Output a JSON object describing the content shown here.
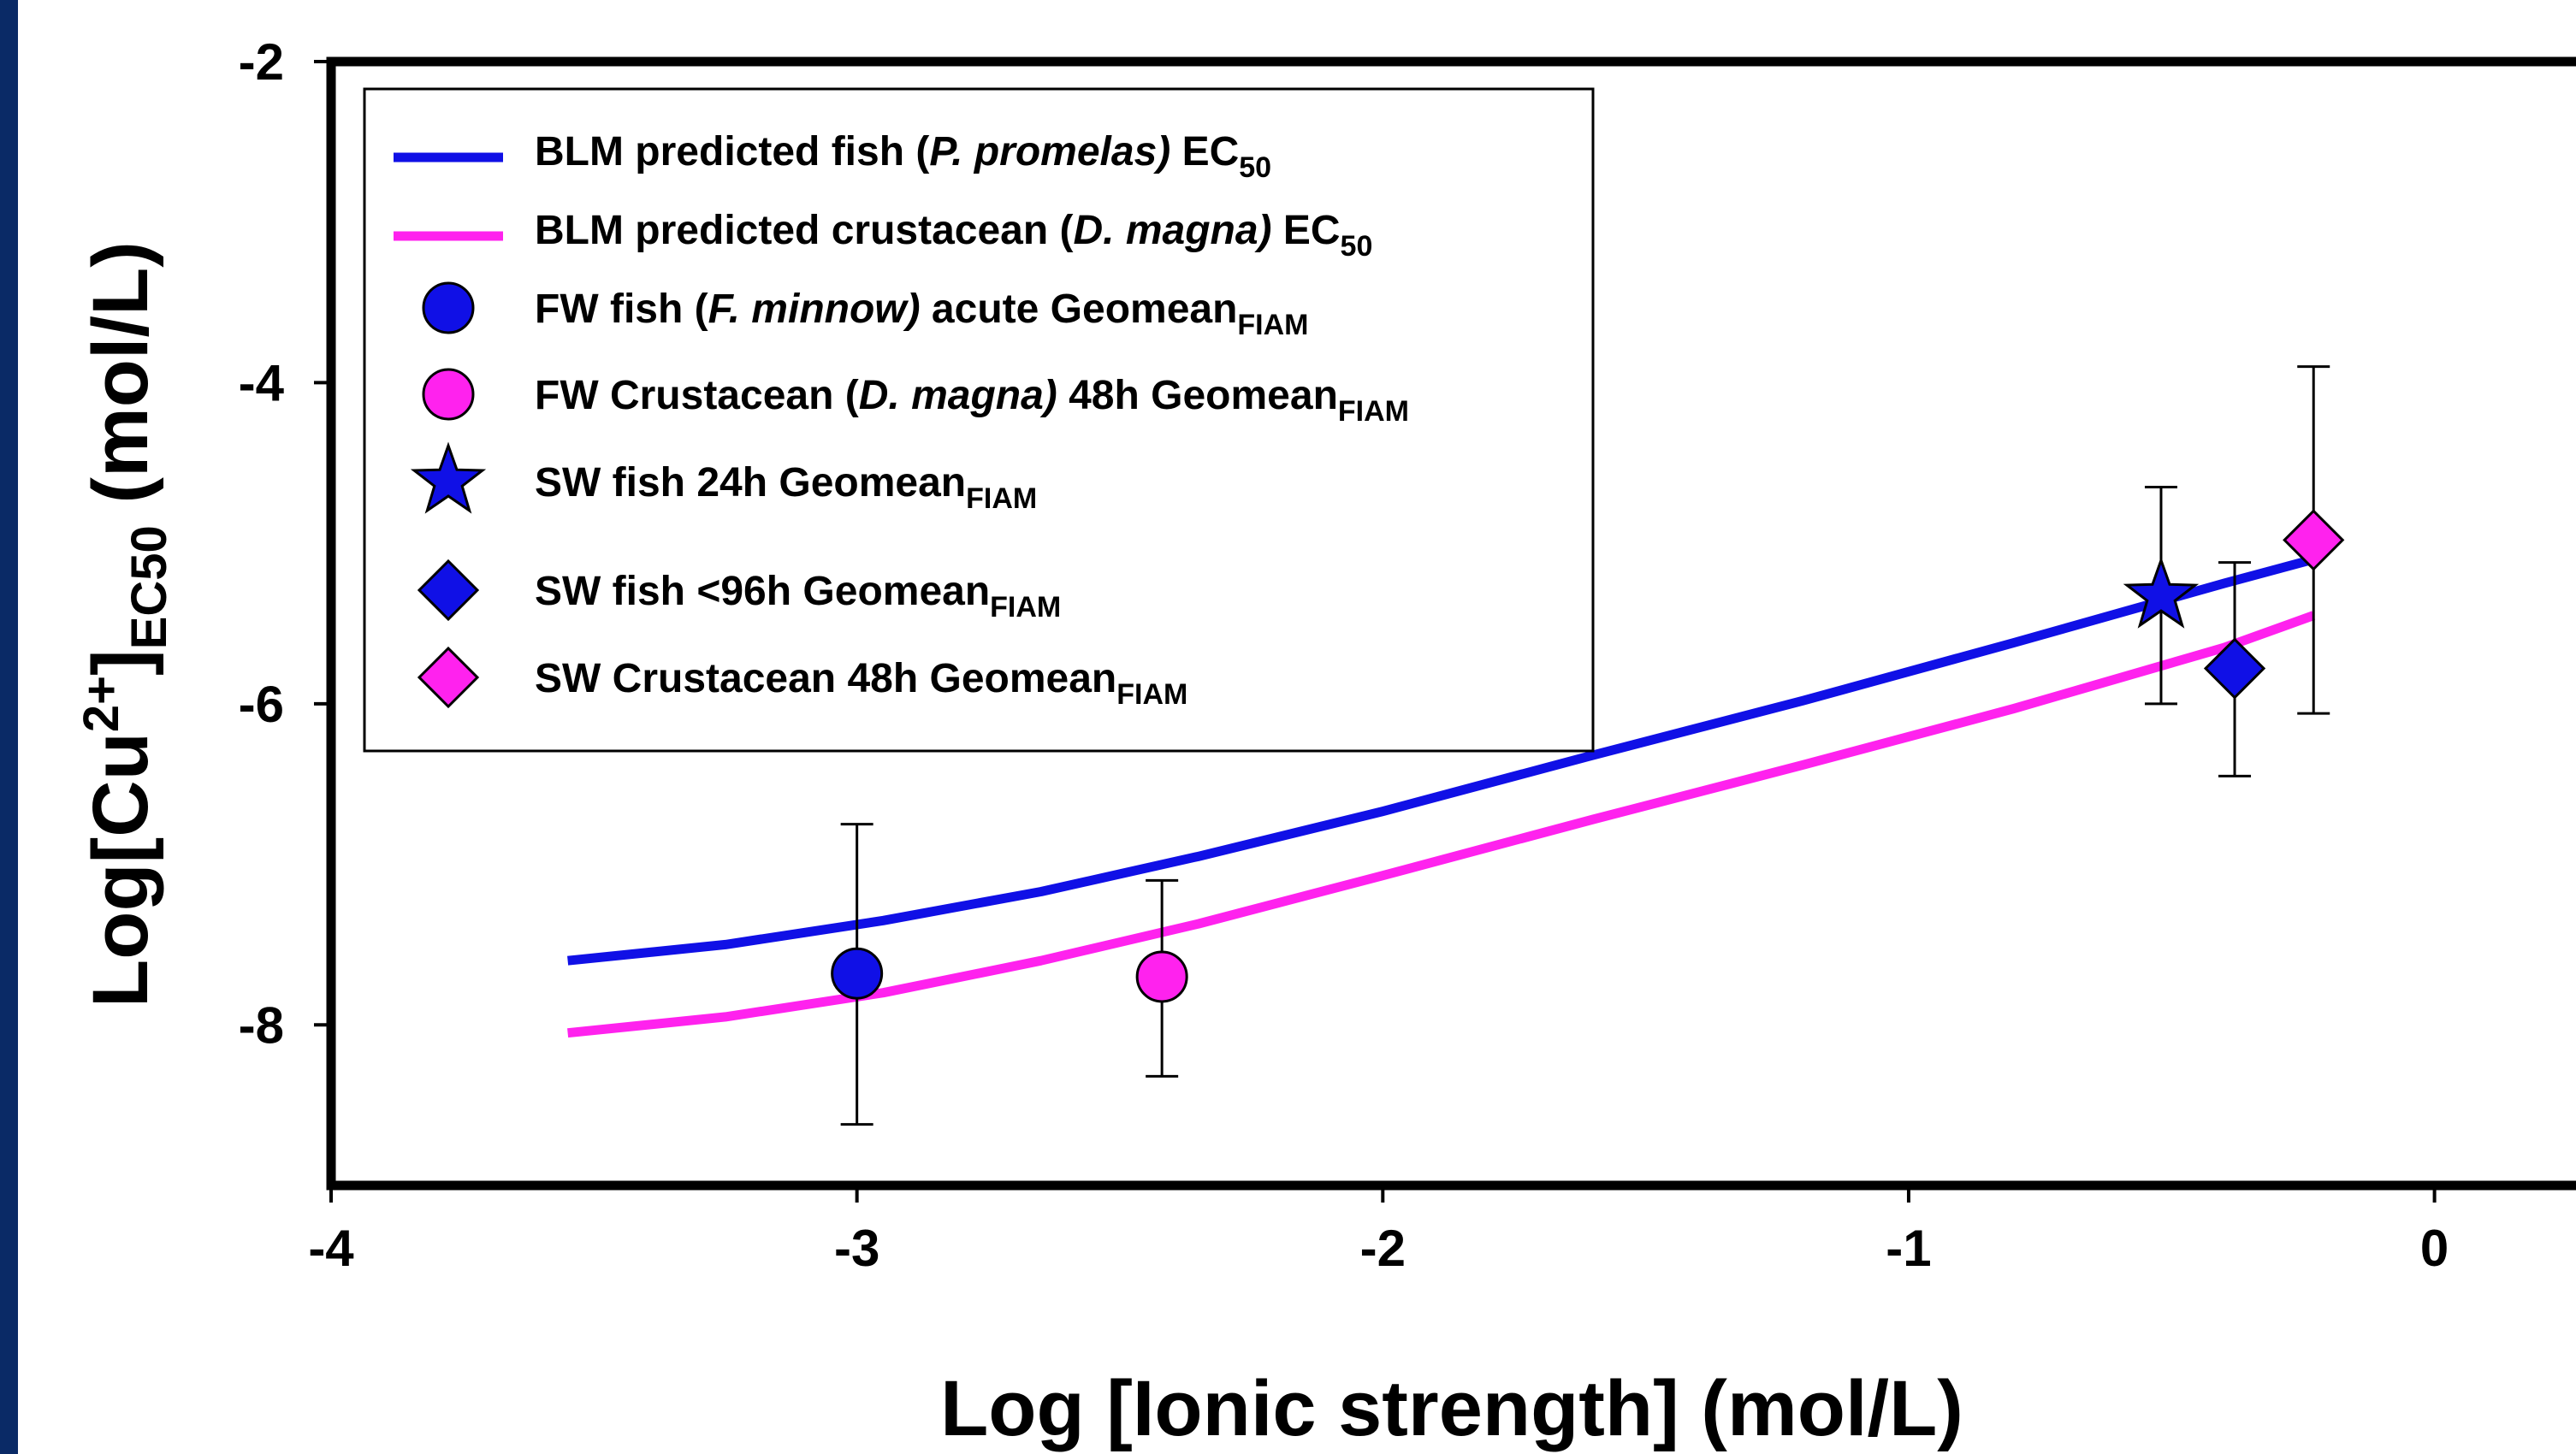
{
  "colors": {
    "fish": "#1010e6",
    "crustacean": "#ff22ee",
    "frame_left": "#0a2a66"
  },
  "chart_data": {
    "type": "scatter",
    "xlabel": "Log [Ionic strength] (mol/L)",
    "ylabel": {
      "pre": "Log[Cu",
      "sup": "2+",
      "mid": "]",
      "sub": "EC50",
      "post": " (mol/L)"
    },
    "xlim": [
      -4,
      0.3
    ],
    "ylim": [
      -9,
      -2
    ],
    "xticks": [
      {
        "value": -4,
        "label": "-4"
      },
      {
        "value": -3,
        "label": "-3"
      },
      {
        "value": -2,
        "label": "-2"
      },
      {
        "value": -1,
        "label": "-1"
      },
      {
        "value": 0,
        "label": "0"
      }
    ],
    "yticks": [
      {
        "value": -2,
        "label": "-2"
      },
      {
        "value": -4,
        "label": "-4"
      },
      {
        "value": -6,
        "label": "-6"
      },
      {
        "value": -8,
        "label": "-8"
      }
    ],
    "lines": [
      {
        "key": "fish-line",
        "color": "#1010e6",
        "x": [
          -3.55,
          -3.25,
          -2.95,
          -2.65,
          -2.35,
          -2.0,
          -1.6,
          -1.2,
          -0.8,
          -0.4,
          -0.23
        ],
        "y": [
          -7.6,
          -7.5,
          -7.35,
          -7.17,
          -6.95,
          -6.67,
          -6.32,
          -5.98,
          -5.62,
          -5.25,
          -5.1
        ]
      },
      {
        "key": "crustacean-line",
        "color": "#ff22ee",
        "x": [
          -3.55,
          -3.25,
          -2.95,
          -2.65,
          -2.35,
          -2.0,
          -1.6,
          -1.2,
          -0.8,
          -0.4,
          -0.23
        ],
        "y": [
          -8.05,
          -7.95,
          -7.8,
          -7.6,
          -7.37,
          -7.07,
          -6.72,
          -6.38,
          -6.03,
          -5.65,
          -5.45
        ]
      }
    ],
    "points": [
      {
        "key": "fw-fish",
        "marker": "circle",
        "color": "#1010e6",
        "x": -3.0,
        "y": -7.68,
        "y_low": -8.62,
        "y_high": -6.75
      },
      {
        "key": "fw-crustacean",
        "marker": "circle",
        "color": "#ff22ee",
        "x": -2.42,
        "y": -7.7,
        "y_low": -8.32,
        "y_high": -7.1
      },
      {
        "key": "sw-fish-24h",
        "marker": "star",
        "color": "#1010e6",
        "x": -0.52,
        "y": -5.33,
        "y_low": -6.0,
        "y_high": -4.65
      },
      {
        "key": "sw-fish-96h",
        "marker": "diamond",
        "color": "#1010e6",
        "x": -0.38,
        "y": -5.78,
        "y_low": -6.45,
        "y_high": -5.12
      },
      {
        "key": "sw-crustacean",
        "marker": "diamond",
        "color": "#ff22ee",
        "x": -0.23,
        "y": -4.98,
        "y_low": -6.06,
        "y_high": -3.9
      }
    ],
    "legend": {
      "placement": "top-left",
      "entries": [
        {
          "marker": "line",
          "color": "#1010e6",
          "parts": [
            {
              "text": "BLM predicted fish ("
            },
            {
              "text": "P. promelas)",
              "style": "italic"
            },
            {
              "text": " EC"
            },
            {
              "text": "50",
              "style": "sub"
            }
          ]
        },
        {
          "marker": "line",
          "color": "#ff22ee",
          "parts": [
            {
              "text": "BLM predicted crustacean ("
            },
            {
              "text": "D. magna)",
              "style": "italic"
            },
            {
              "text": " EC"
            },
            {
              "text": "50",
              "style": "sub"
            }
          ]
        },
        {
          "marker": "circle",
          "color": "#1010e6",
          "parts": [
            {
              "text": "FW fish ("
            },
            {
              "text": "F. minnow)",
              "style": "italic"
            },
            {
              "text": " acute Geomean"
            },
            {
              "text": "FIAM",
              "style": "sub"
            }
          ]
        },
        {
          "marker": "circle",
          "color": "#ff22ee",
          "parts": [
            {
              "text": "FW Crustacean ("
            },
            {
              "text": "D. magna)",
              "style": "italic"
            },
            {
              "text": " 48h Geomean"
            },
            {
              "text": "FIAM",
              "style": "sub"
            }
          ]
        },
        {
          "marker": "star",
          "color": "#1010e6",
          "parts": [
            {
              "text": "SW fish 24h Geomean"
            },
            {
              "text": "FIAM",
              "style": "sub"
            }
          ]
        },
        {
          "marker": "diamond",
          "color": "#1010e6",
          "parts": [
            {
              "text": "SW fish <96h Geomean"
            },
            {
              "text": "FIAM",
              "style": "sub"
            }
          ]
        },
        {
          "marker": "diamond",
          "color": "#ff22ee",
          "parts": [
            {
              "text": "SW Crustacean 48h Geomean"
            },
            {
              "text": "FIAM",
              "style": "sub"
            }
          ]
        }
      ]
    }
  }
}
